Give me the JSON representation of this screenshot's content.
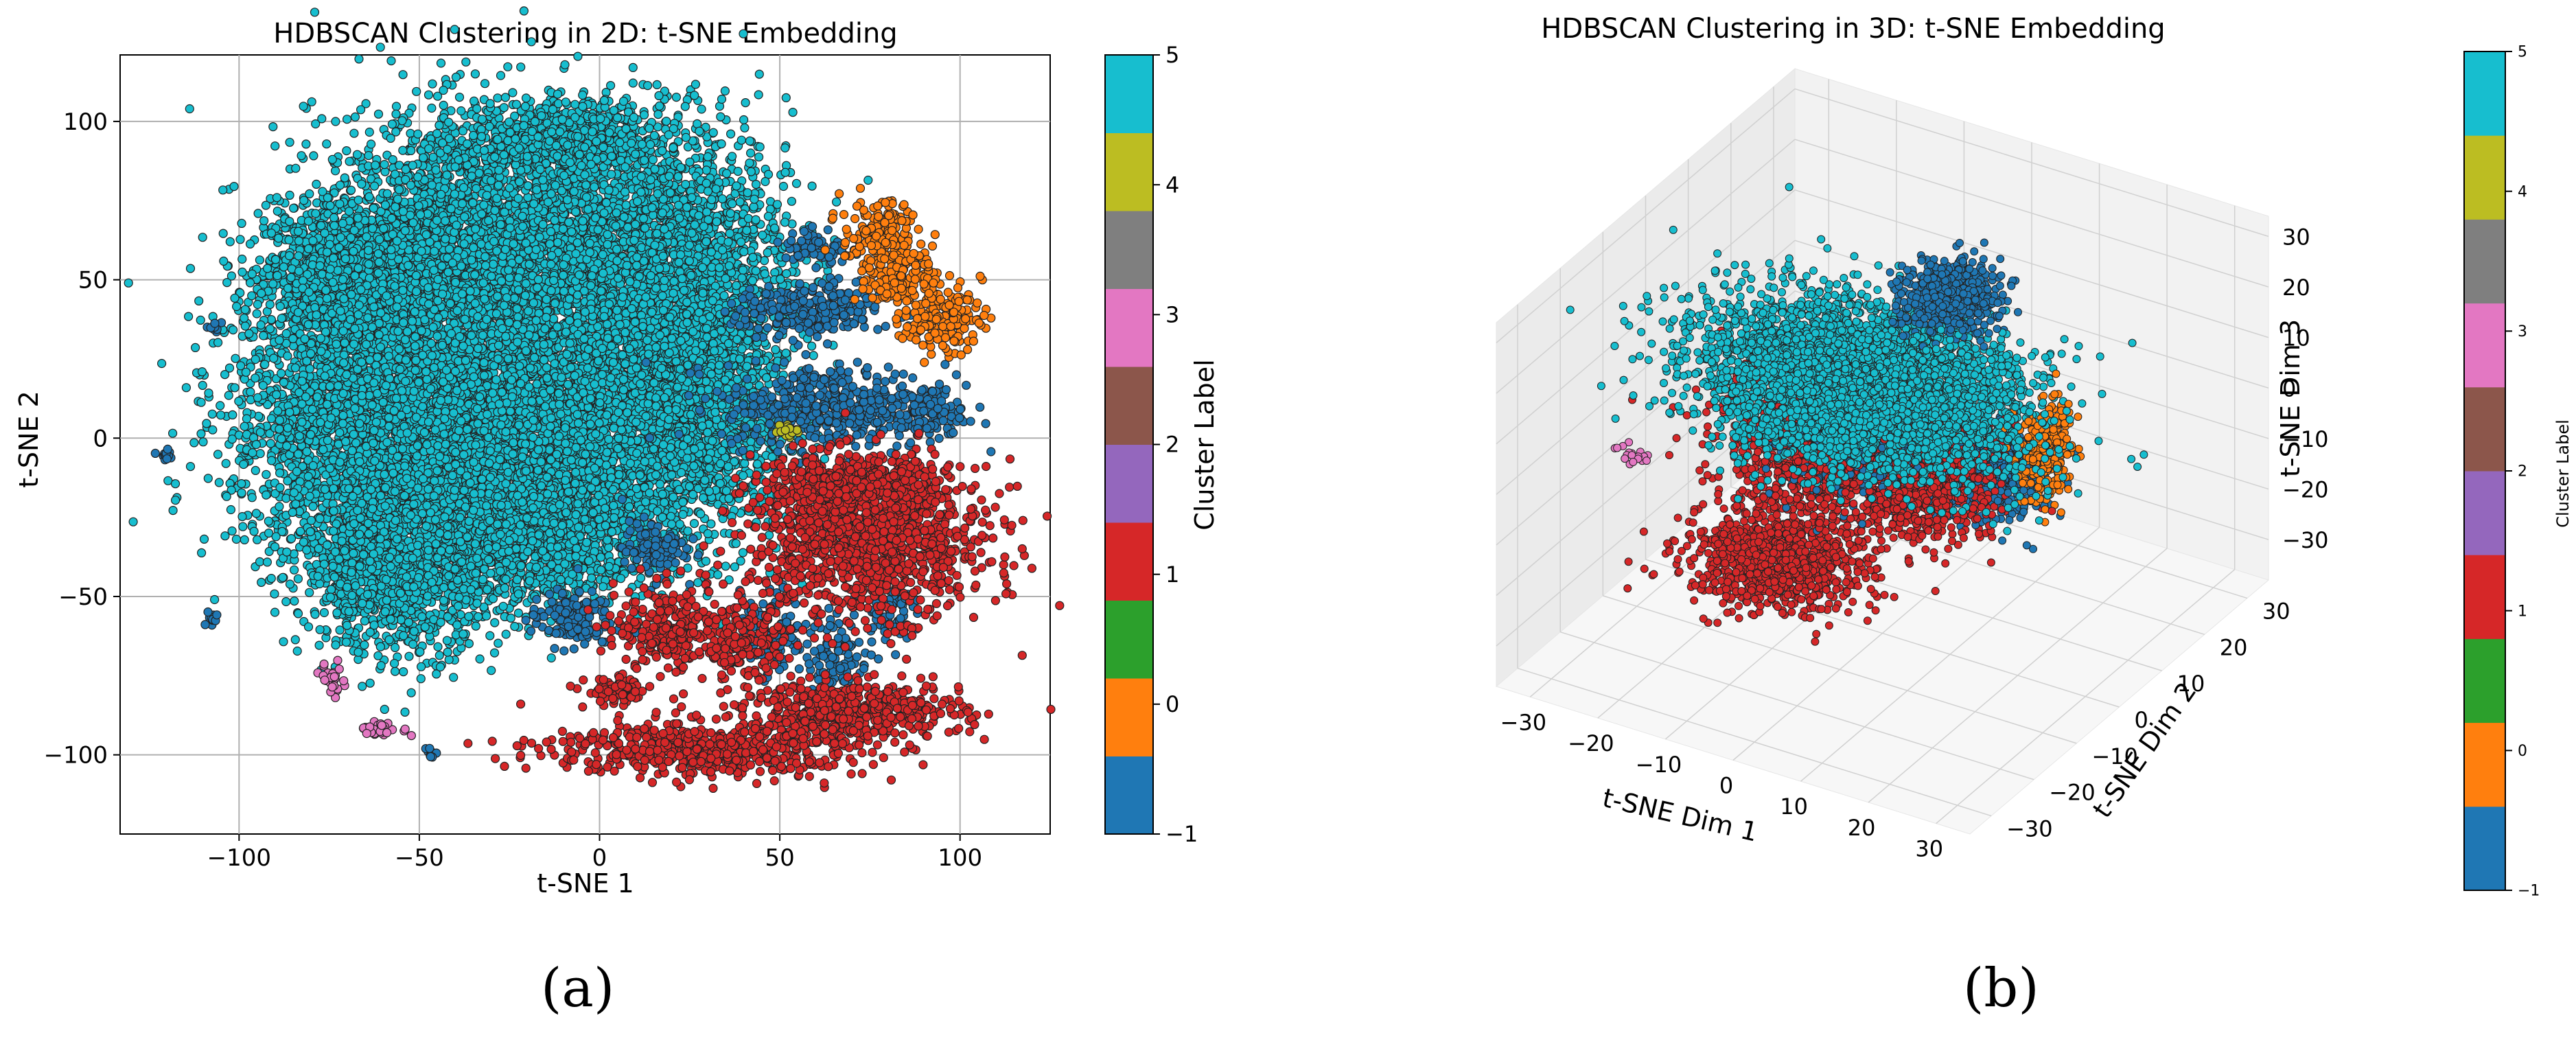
{
  "panels": [
    {
      "label": "(a)"
    },
    {
      "label": "(b)"
    }
  ],
  "chart_data": [
    {
      "type": "scatter",
      "title": "HDBSCAN Clustering in 2D: t-SNE Embedding",
      "xlabel": "t-SNE 1",
      "ylabel": "t-SNE 2",
      "xlim": [
        -133,
        125
      ],
      "ylim": [
        -125,
        121
      ],
      "xticks": [
        -100,
        -50,
        0,
        50,
        100
      ],
      "yticks": [
        -100,
        -50,
        0,
        50,
        100
      ],
      "xtick_labels": [
        "−100",
        "−50",
        "0",
        "50",
        "100"
      ],
      "ytick_labels": [
        "−100",
        "−50",
        "0",
        "50",
        "100"
      ],
      "grid": true,
      "colorbar": {
        "label": "Cluster Label",
        "ticks": [
          "−1",
          "0",
          "1",
          "2",
          "3",
          "4",
          "5"
        ]
      },
      "clusters": [
        {
          "label": 5,
          "color": "#17becf",
          "regions": [
            [
              -68,
              52,
              22,
              18,
              1600
            ],
            [
              -30,
              60,
              45,
              38,
              3200
            ],
            [
              20,
              55,
              30,
              40,
              1800
            ],
            [
              -60,
              5,
              38,
              38,
              3000
            ],
            [
              -15,
              5,
              40,
              40,
              2800
            ],
            [
              25,
              10,
              25,
              40,
              1600
            ],
            [
              -55,
              -40,
              25,
              25,
              1400
            ],
            [
              -15,
              -30,
              25,
              20,
              1000
            ],
            [
              -10,
              95,
              25,
              10,
              600
            ]
          ]
        },
        {
          "label": -1,
          "color": "#1f77b4",
          "regions": [
            [
              58,
              40,
              18,
              8,
              250
            ],
            [
              65,
              10,
              28,
              12,
              450
            ],
            [
              92,
              8,
              8,
              8,
              90
            ],
            [
              15,
              -35,
              8,
              8,
              100
            ],
            [
              -8,
              -57,
              10,
              8,
              140
            ],
            [
              48,
              -62,
              8,
              12,
              120
            ],
            [
              66,
              -68,
              8,
              12,
              90
            ],
            [
              80,
              -55,
              6,
              8,
              60
            ],
            [
              60,
              60,
              8,
              6,
              60
            ]
          ]
        },
        {
          "label": 1,
          "color": "#d62728",
          "regions": [
            [
              75,
              -32,
              30,
              22,
              1200
            ],
            [
              70,
              -15,
              20,
              8,
              500
            ],
            [
              20,
              -60,
              14,
              12,
              250
            ],
            [
              40,
              -65,
              10,
              10,
              160
            ],
            [
              5,
              -80,
              8,
              4,
              80
            ],
            [
              70,
              -86,
              28,
              8,
              500
            ],
            [
              30,
              -98,
              40,
              8,
              600
            ]
          ]
        },
        {
          "label": 0,
          "color": "#ff7f0e",
          "regions": [
            [
              78,
              62,
              10,
              12,
              200
            ],
            [
              95,
              38,
              10,
              10,
              160
            ],
            [
              85,
              50,
              8,
              8,
              100
            ]
          ]
        },
        {
          "label": 3,
          "color": "#e377c2",
          "regions": [
            [
              -74,
              -76,
              3,
              5,
              30
            ],
            [
              -60,
              -92,
              6,
              2,
              30
            ]
          ]
        },
        {
          "label": 4,
          "color": "#bcbd22",
          "regions": [
            [
              52,
              2,
              4,
              2,
              15
            ]
          ]
        },
        {
          "label": -1,
          "color": "#1f77b4",
          "regions": [
            [
              -120,
              -5,
              2,
              2,
              12
            ],
            [
              -107,
              -57,
              2,
              2,
              10
            ],
            [
              -107,
              35,
              2,
              2,
              10
            ],
            [
              -47,
              -99,
              2,
              2,
              8
            ]
          ]
        }
      ]
    },
    {
      "type": "scatter",
      "title": "HDBSCAN Clustering in 3D: t-SNE Embedding",
      "xlabel": "t-SNE Dim 1",
      "ylabel": "t-SNE Dim 2",
      "zlabel": "t-SNE Dim 3",
      "xlim": [
        -35,
        35
      ],
      "ylim": [
        -35,
        35
      ],
      "zlim": [
        -38,
        34
      ],
      "xticks": [
        -30,
        -20,
        -10,
        0,
        10,
        20,
        30
      ],
      "yticks": [
        -30,
        -20,
        -10,
        0,
        10,
        20,
        30
      ],
      "zticks": [
        -30,
        -20,
        -10,
        0,
        10,
        20,
        30
      ],
      "xtick_labels": [
        "−30",
        "−20",
        "−10",
        "0",
        "10",
        "20",
        "30"
      ],
      "ytick_labels": [
        "−30",
        "−20",
        "−10",
        "0",
        "10",
        "20",
        "30"
      ],
      "ztick_labels": [
        "−30",
        "−20",
        "−10",
        "0",
        "10",
        "20",
        "30"
      ],
      "grid": true,
      "colorbar": {
        "label": "Cluster Label",
        "ticks": [
          "−1",
          "0",
          "1",
          "2",
          "3",
          "4",
          "5"
        ]
      },
      "clusters": [
        {
          "label": 5,
          "color": "#17becf",
          "regions": [
            [
              -3,
              0,
              10,
              22,
              14,
              10,
              4200
            ]
          ]
        },
        {
          "label": -1,
          "color": "#1f77b4",
          "regions": [
            [
              5,
              8,
              25,
              6,
              6,
              5,
              600
            ],
            [
              -4,
              4,
              -4,
              10,
              10,
              8,
              900
            ],
            [
              8,
              12,
              -12,
              8,
              8,
              6,
              500
            ]
          ]
        },
        {
          "label": 1,
          "color": "#d62728",
          "regions": [
            [
              -6,
              2,
              -6,
              16,
              12,
              8,
              1600
            ],
            [
              -12,
              -6,
              -24,
              12,
              10,
              5,
              900
            ],
            [
              5,
              5,
              -10,
              8,
              10,
              8,
              500
            ]
          ]
        },
        {
          "label": 0,
          "color": "#ff7f0e",
          "regions": [
            [
              20,
              6,
              2,
              3,
              5,
              9,
              250
            ]
          ]
        },
        {
          "label": 3,
          "color": "#e377c2",
          "regions": [
            [
              -32,
              -8,
              -10,
              2,
              2,
              2,
              20
            ]
          ]
        }
      ]
    }
  ]
}
